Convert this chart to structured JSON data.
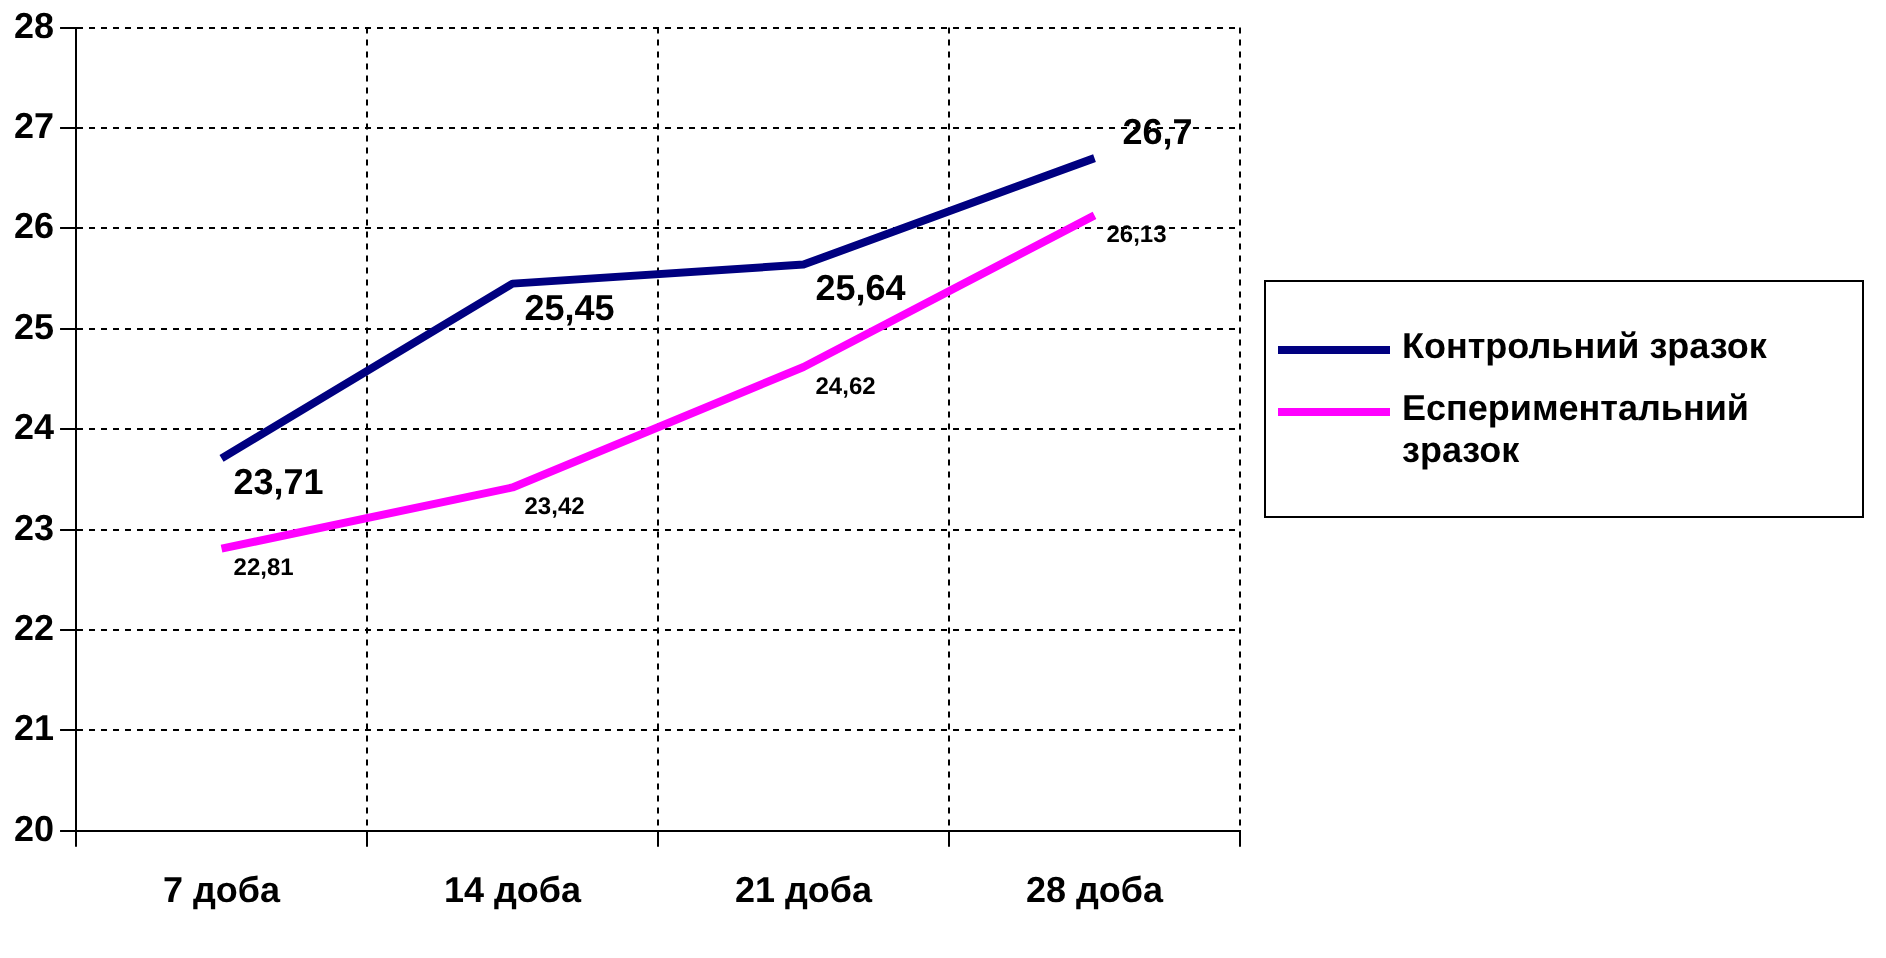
{
  "chart_data": {
    "type": "line",
    "categories": [
      "7 доба",
      "14 доба",
      "21 доба",
      "28 доба"
    ],
    "series": [
      {
        "name": "Контрольний зразок",
        "color": "#000080",
        "values": [
          23.71,
          25.45,
          25.64,
          26.7
        ],
        "value_labels": [
          "23,71",
          "25,45",
          "25,64",
          "26,7"
        ]
      },
      {
        "name": "Еспериментальний зразок",
        "color": "#ff00ff",
        "values": [
          22.81,
          23.42,
          24.62,
          26.13
        ],
        "value_labels": [
          "22,81",
          "23,42",
          "24,62",
          "26,13"
        ]
      }
    ],
    "ylim": [
      20,
      28
    ],
    "yticks": [
      20,
      21,
      22,
      23,
      24,
      25,
      26,
      27,
      28
    ],
    "grid": true,
    "legend": "right",
    "marker": "none",
    "line_style": "solid"
  }
}
